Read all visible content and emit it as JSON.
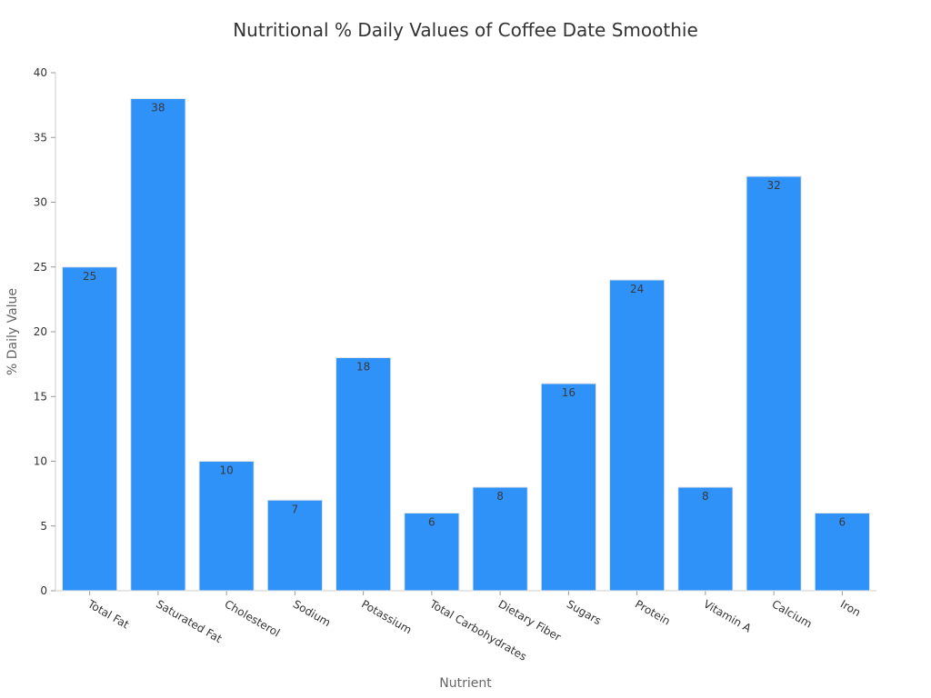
{
  "colors": {
    "bar_fill": "#2f92f8",
    "bar_stroke": "#e6e6e6"
  },
  "chart_data": {
    "type": "bar",
    "title": "Nutritional % Daily Values of Coffee Date Smoothie",
    "xlabel": "Nutrient",
    "ylabel": "% Daily Value",
    "ylim": [
      0,
      40
    ],
    "yticks": [
      0,
      5,
      10,
      15,
      20,
      25,
      30,
      35,
      40
    ],
    "grid": false,
    "categories": [
      "Total Fat",
      "Saturated Fat",
      "Cholesterol",
      "Sodium",
      "Potassium",
      "Total Carbohydrates",
      "Dietary Fiber",
      "Sugars",
      "Protein",
      "Vitamin A",
      "Calcium",
      "Iron"
    ],
    "values": [
      25,
      38,
      10,
      7,
      18,
      6,
      8,
      16,
      24,
      8,
      32,
      6
    ]
  }
}
